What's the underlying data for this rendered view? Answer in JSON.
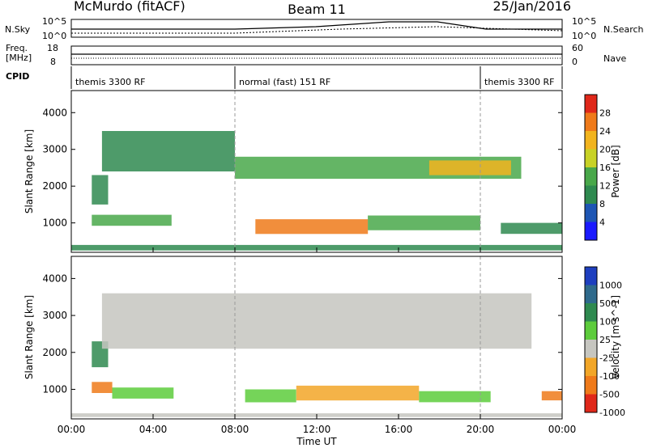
{
  "header": {
    "station": "McMurdo (fitACF)",
    "beam": "Beam 11",
    "date": "25/Jan/2016"
  },
  "status_panel": {
    "left_labels": [
      "N.Sky",
      "Freq.",
      "[MHz]",
      "CPID"
    ],
    "right_labels": [
      "N.Search",
      "Nave"
    ],
    "sky_ticks": [
      "10^5",
      "10^0"
    ],
    "search_ticks": [
      "10^5",
      "10^0"
    ],
    "freq_ticks": [
      "18",
      "8"
    ],
    "nave_ticks": [
      "60",
      "0"
    ],
    "cpid_segments": [
      {
        "label": "themis 3300 RF",
        "start_h": 0,
        "end_h": 8
      },
      {
        "label": "normal (fast) 151 RF",
        "start_h": 8,
        "end_h": 20
      },
      {
        "label": "themis 3300 RF",
        "start_h": 20,
        "end_h": 24
      }
    ]
  },
  "axes": {
    "xlabel": "Time UT",
    "xticks": [
      "00:00",
      "04:00",
      "08:00",
      "12:00",
      "16:00",
      "20:00",
      "00:00"
    ],
    "ylabel": "Slant Range [km]",
    "yticks": [
      "1000",
      "2000",
      "3000",
      "4000"
    ]
  },
  "power_colorbar": {
    "label": "Power [dB]",
    "ticks": [
      "4",
      "8",
      "12",
      "16",
      "20",
      "24",
      "28"
    ],
    "colors": [
      "#1a1aff",
      "#1e56b4",
      "#2f8a50",
      "#49a84a",
      "#c8d226",
      "#f2b41e",
      "#ef7a1a",
      "#e0281a"
    ]
  },
  "velocity_colorbar": {
    "label": "Velocity [m s^-1]",
    "ticks": [
      "1000",
      "500",
      "100",
      "25",
      "-25",
      "-100",
      "-500",
      "-1000"
    ],
    "colors": [
      "#1e3fbf",
      "#2f6a8c",
      "#2f8a50",
      "#5dcc3c",
      "#c6c6c0",
      "#f2a628",
      "#ef7a1a",
      "#e0281a"
    ]
  },
  "chart_data": [
    {
      "type": "heatmap",
      "title": "Power",
      "xlabel": "Time UT",
      "ylabel": "Slant Range [km]",
      "xlim_hours": [
        0,
        24
      ],
      "ylim_km": [
        200,
        4600
      ],
      "colorbar_label": "Power [dB]",
      "colorbar_ticks": [
        4,
        8,
        12,
        16,
        20,
        24,
        28
      ],
      "regions": [
        {
          "t0": 1.0,
          "t1": 4.9,
          "r0": 920,
          "r1": 1220,
          "level": 3
        },
        {
          "t0": 1.0,
          "t1": 1.8,
          "r0": 1500,
          "r1": 2300,
          "level": 2
        },
        {
          "t0": 1.5,
          "t1": 8.0,
          "r0": 2400,
          "r1": 3500,
          "level": 2
        },
        {
          "t0": 8.0,
          "t1": 22.0,
          "r0": 2200,
          "r1": 2800,
          "level": 3
        },
        {
          "t0": 17.5,
          "t1": 21.5,
          "r0": 2300,
          "r1": 2700,
          "level": 5
        },
        {
          "t0": 9.0,
          "t1": 14.5,
          "r0": 700,
          "r1": 1100,
          "level": 6
        },
        {
          "t0": 14.5,
          "t1": 20.0,
          "r0": 800,
          "r1": 1200,
          "level": 3
        },
        {
          "t0": 21.0,
          "t1": 24.0,
          "r0": 700,
          "r1": 1000,
          "level": 2
        },
        {
          "t0": 0.0,
          "t1": 24.0,
          "r0": 250,
          "r1": 400,
          "level": 2
        }
      ]
    },
    {
      "type": "heatmap",
      "title": "Velocity",
      "xlabel": "Time UT",
      "ylabel": "Slant Range [km]",
      "xlim_hours": [
        0,
        24
      ],
      "ylim_km": [
        200,
        4600
      ],
      "colorbar_label": "Velocity [m s^-1]",
      "colorbar_ticks": [
        1000,
        500,
        100,
        25,
        -25,
        -100,
        -500,
        -1000
      ],
      "regions": [
        {
          "t0": 1.0,
          "t1": 2.0,
          "r0": 900,
          "r1": 1200,
          "class": 6
        },
        {
          "t0": 2.0,
          "t1": 5.0,
          "r0": 750,
          "r1": 1050,
          "class": 3
        },
        {
          "t0": 1.0,
          "t1": 1.8,
          "r0": 1600,
          "r1": 2300,
          "class": 2
        },
        {
          "t0": 1.5,
          "t1": 22.5,
          "r0": 2100,
          "r1": 3600,
          "class": 4
        },
        {
          "t0": 8.5,
          "t1": 11.0,
          "r0": 650,
          "r1": 1000,
          "class": 3
        },
        {
          "t0": 11.0,
          "t1": 17.0,
          "r0": 700,
          "r1": 1100,
          "class": 5
        },
        {
          "t0": 17.0,
          "t1": 20.5,
          "r0": 650,
          "r1": 950,
          "class": 3
        },
        {
          "t0": 23.0,
          "t1": 24.0,
          "r0": 700,
          "r1": 950,
          "class": 6
        },
        {
          "t0": 0.0,
          "t1": 24.0,
          "r0": 250,
          "r1": 350,
          "class": 4
        }
      ]
    }
  ]
}
